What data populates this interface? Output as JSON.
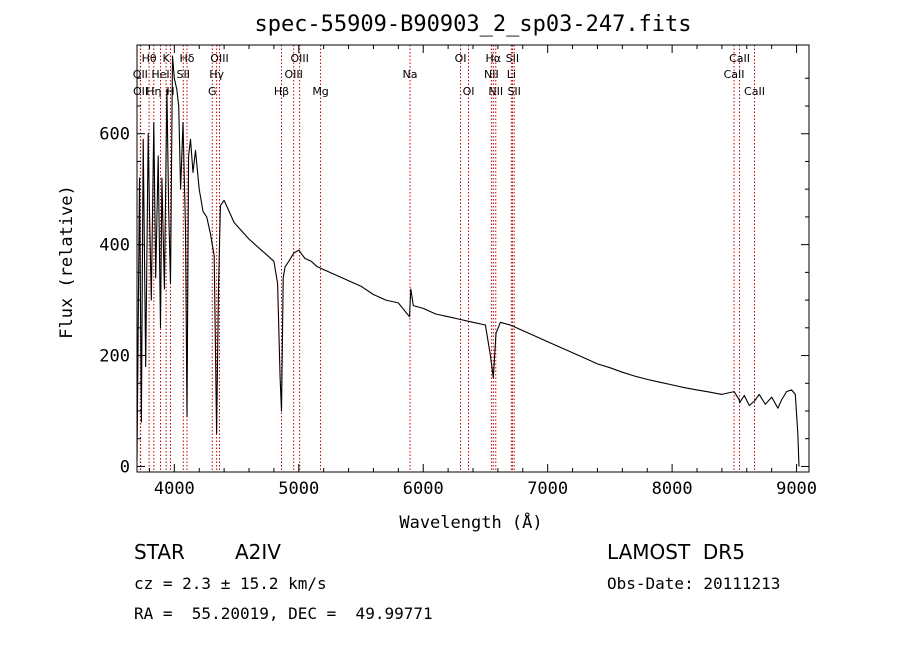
{
  "chart_data": {
    "type": "line",
    "title": "spec-55909-B90903_2_sp03-247.fits",
    "xlabel": "Wavelength (Å)",
    "ylabel": "Flux (relative)",
    "xlim": [
      3700,
      9100
    ],
    "ylim": [
      -10,
      760
    ],
    "x_ticks": [
      4000,
      5000,
      6000,
      7000,
      8000,
      9000
    ],
    "y_ticks": [
      0,
      200,
      400,
      600
    ],
    "grid": false,
    "series": [
      {
        "color": "#000000",
        "x": [
          3700,
          3720,
          3735,
          3750,
          3770,
          3790,
          3800,
          3815,
          3835,
          3850,
          3870,
          3889,
          3900,
          3920,
          3940,
          3955,
          3969,
          3985,
          4000,
          4020,
          4035,
          4050,
          4070,
          4090,
          4102,
          4115,
          4130,
          4150,
          4170,
          4200,
          4230,
          4260,
          4290,
          4320,
          4340,
          4355,
          4370,
          4400,
          4440,
          4480,
          4520,
          4560,
          4600,
          4650,
          4700,
          4750,
          4800,
          4830,
          4850,
          4861,
          4875,
          4890,
          4920,
          4960,
          5000,
          5050,
          5100,
          5150,
          5200,
          5250,
          5300,
          5400,
          5500,
          5600,
          5700,
          5800,
          5890,
          5900,
          5920,
          6000,
          6100,
          6200,
          6300,
          6400,
          6500,
          6540,
          6563,
          6585,
          6620,
          6700,
          6800,
          6900,
          7000,
          7100,
          7200,
          7300,
          7400,
          7500,
          7600,
          7700,
          7800,
          7900,
          8000,
          8100,
          8200,
          8300,
          8400,
          8498,
          8540,
          8542,
          8580,
          8620,
          8662,
          8700,
          8750,
          8800,
          8850,
          8880,
          8920,
          8960,
          8990,
          9010,
          9020
        ],
        "y": [
          10,
          520,
          80,
          590,
          180,
          600,
          470,
          300,
          620,
          340,
          560,
          250,
          520,
          320,
          680,
          460,
          330,
          740,
          700,
          680,
          650,
          500,
          620,
          430,
          90,
          560,
          590,
          530,
          570,
          500,
          460,
          450,
          420,
          380,
          60,
          320,
          470,
          480,
          460,
          440,
          430,
          420,
          410,
          400,
          390,
          380,
          370,
          330,
          160,
          100,
          340,
          360,
          370,
          385,
          390,
          375,
          370,
          360,
          355,
          350,
          345,
          335,
          325,
          310,
          300,
          295,
          270,
          320,
          290,
          285,
          275,
          270,
          265,
          260,
          255,
          200,
          160,
          240,
          260,
          255,
          245,
          235,
          225,
          215,
          205,
          195,
          185,
          178,
          170,
          163,
          157,
          152,
          147,
          142,
          138,
          134,
          130,
          135,
          120,
          115,
          128,
          110,
          118,
          130,
          112,
          125,
          105,
          120,
          135,
          138,
          130,
          60,
          0
        ]
      }
    ],
    "lines": [
      {
        "label": "Hθ",
        "x": 3797,
        "row": 1
      },
      {
        "label": "K",
        "x": 3934,
        "row": 1
      },
      {
        "label": "Hδ",
        "x": 4102,
        "row": 1
      },
      {
        "label": "OII",
        "x": 3727,
        "row": 2
      },
      {
        "label": "HeI",
        "x": 3889,
        "row": 2
      },
      {
        "label": "SII",
        "x": 4072,
        "row": 2
      },
      {
        "label": "OII",
        "x": 3729,
        "row": 3
      },
      {
        "label": "Hη",
        "x": 3835,
        "row": 3
      },
      {
        "label": "H",
        "x": 3969,
        "row": 3
      },
      {
        "label": "OIII",
        "x": 4363,
        "row": 1
      },
      {
        "label": "Hγ",
        "x": 4340,
        "row": 2
      },
      {
        "label": "G",
        "x": 4305,
        "row": 3
      },
      {
        "label": "Hβ",
        "x": 4861,
        "row": 3
      },
      {
        "label": "OIII",
        "x": 4959,
        "row": 2
      },
      {
        "label": "OIII",
        "x": 5007,
        "row": 1
      },
      {
        "label": "Mg",
        "x": 5175,
        "row": 3
      },
      {
        "label": "Na",
        "x": 5894,
        "row": 2
      },
      {
        "label": "OI",
        "x": 6300,
        "row": 1
      },
      {
        "label": "OI",
        "x": 6364,
        "row": 3
      },
      {
        "label": "Hα",
        "x": 6563,
        "row": 1
      },
      {
        "label": "NII",
        "x": 6548,
        "row": 2
      },
      {
        "label": "NII",
        "x": 6583,
        "row": 3
      },
      {
        "label": "Li",
        "x": 6708,
        "row": 2
      },
      {
        "label": "SII",
        "x": 6717,
        "row": 1
      },
      {
        "label": "SII",
        "x": 6731,
        "row": 3
      },
      {
        "label": "CaII",
        "x": 8542,
        "row": 1
      },
      {
        "label": "CaII",
        "x": 8498,
        "row": 2
      },
      {
        "label": "CaII",
        "x": 8662,
        "row": 3
      }
    ]
  },
  "info": {
    "object_class": "STAR",
    "subclass": "A2IV",
    "survey": "LAMOST  DR5",
    "cz": "cz = 2.3 ± 15.2 km/s",
    "obs_date": "Obs-Date: 20111213",
    "coords": "RA =  55.20019, DEC =  49.99771"
  }
}
